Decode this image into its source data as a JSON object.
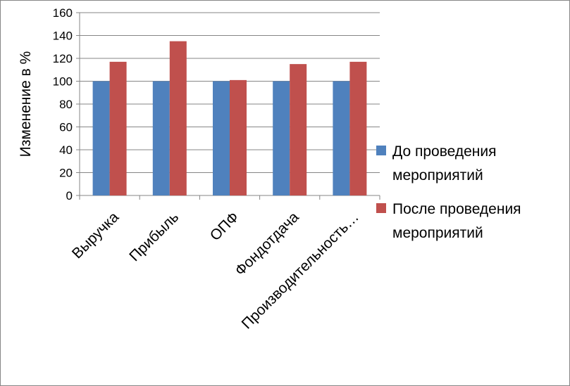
{
  "chart_data": {
    "type": "bar",
    "title": "",
    "xlabel": "",
    "ylabel": "Изменение в %",
    "ylim": [
      0,
      160
    ],
    "yticks": [
      0,
      20,
      40,
      60,
      80,
      100,
      120,
      140,
      160
    ],
    "grid": true,
    "legend_position": "right",
    "categories": [
      "Выручка",
      "Прибыль",
      "ОПФ",
      "Фондотдача",
      "Производительность…"
    ],
    "series": [
      {
        "name": "До проведения мероприятий",
        "name_lines": [
          "До проведения",
          "мероприятий"
        ],
        "color": "#4F81BD",
        "values": [
          100,
          100,
          100,
          100,
          100
        ]
      },
      {
        "name": "После проведения мероприятий",
        "name_lines": [
          "После проведения",
          "мероприятий"
        ],
        "color": "#C0504D",
        "values": [
          117,
          135,
          101,
          115,
          117
        ]
      }
    ]
  }
}
